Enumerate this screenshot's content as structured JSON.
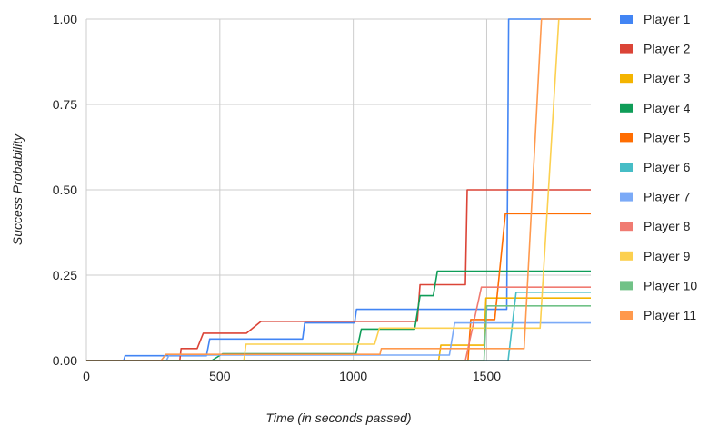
{
  "chart_data": {
    "type": "line",
    "title": "",
    "xlabel": "Time (in seconds passed)",
    "ylabel": "Success Probability",
    "xlim": [
      0,
      1890
    ],
    "ylim": [
      0,
      1
    ],
    "x_ticks": [
      0,
      500,
      1000,
      1500
    ],
    "x_tick_labels": [
      "0",
      "500",
      "1000",
      "1500"
    ],
    "y_ticks": [
      0,
      0.25,
      0.5,
      0.75,
      1
    ],
    "y_tick_labels": [
      "0.00",
      "0.25",
      "0.50",
      "0.75",
      "1.00"
    ],
    "grid": true,
    "legend_position": "right",
    "series": [
      {
        "name": "Player 1",
        "color": "#4285F4",
        "points": [
          [
            0,
            0
          ],
          [
            140,
            0
          ],
          [
            145,
            0.014
          ],
          [
            450,
            0.014
          ],
          [
            462,
            0.063
          ],
          [
            810,
            0.063
          ],
          [
            818,
            0.11
          ],
          [
            1005,
            0.11
          ],
          [
            1012,
            0.15
          ],
          [
            1575,
            0.15
          ],
          [
            1582,
            1
          ],
          [
            1890,
            1
          ]
        ]
      },
      {
        "name": "Player 2",
        "color": "#DB4437",
        "points": [
          [
            0,
            0
          ],
          [
            350,
            0
          ],
          [
            355,
            0.035
          ],
          [
            415,
            0.035
          ],
          [
            438,
            0.08
          ],
          [
            600,
            0.08
          ],
          [
            655,
            0.115
          ],
          [
            1240,
            0.115
          ],
          [
            1250,
            0.222
          ],
          [
            1420,
            0.222
          ],
          [
            1427,
            0.5
          ],
          [
            1890,
            0.5
          ]
        ]
      },
      {
        "name": "Player 3",
        "color": "#F4B400",
        "points": [
          [
            0,
            0
          ],
          [
            1320,
            0
          ],
          [
            1328,
            0.045
          ],
          [
            1490,
            0.045
          ],
          [
            1497,
            0.183
          ],
          [
            1890,
            0.183
          ]
        ]
      },
      {
        "name": "Player 4",
        "color": "#0F9D58",
        "points": [
          [
            0,
            0
          ],
          [
            470,
            0
          ],
          [
            510,
            0.02
          ],
          [
            1010,
            0.02
          ],
          [
            1030,
            0.092
          ],
          [
            1230,
            0.092
          ],
          [
            1250,
            0.19
          ],
          [
            1300,
            0.19
          ],
          [
            1315,
            0.262
          ],
          [
            1890,
            0.262
          ]
        ]
      },
      {
        "name": "Player 5",
        "color": "#FF6D01",
        "points": [
          [
            0,
            0
          ],
          [
            1430,
            0
          ],
          [
            1440,
            0.12
          ],
          [
            1530,
            0.12
          ],
          [
            1570,
            0.43
          ],
          [
            1890,
            0.43
          ]
        ]
      },
      {
        "name": "Player 6",
        "color": "#46BDC6",
        "points": [
          [
            0,
            0
          ],
          [
            1580,
            0
          ],
          [
            1610,
            0.2
          ],
          [
            1890,
            0.2
          ]
        ]
      },
      {
        "name": "Player 7",
        "color": "#7BAAF7",
        "points": [
          [
            0,
            0
          ],
          [
            300,
            0
          ],
          [
            310,
            0.016
          ],
          [
            1360,
            0.016
          ],
          [
            1380,
            0.11
          ],
          [
            1890,
            0.11
          ]
        ]
      },
      {
        "name": "Player 8",
        "color": "#F07B72",
        "points": [
          [
            0,
            0
          ],
          [
            1420,
            0
          ],
          [
            1480,
            0.215
          ],
          [
            1890,
            0.215
          ]
        ]
      },
      {
        "name": "Player 9",
        "color": "#FCD04F",
        "points": [
          [
            0,
            0
          ],
          [
            590,
            0
          ],
          [
            598,
            0.048
          ],
          [
            1080,
            0.048
          ],
          [
            1098,
            0.095
          ],
          [
            1700,
            0.095
          ],
          [
            1770,
            1
          ],
          [
            1890,
            1
          ]
        ]
      },
      {
        "name": "Player 10",
        "color": "#71C287",
        "points": [
          [
            0,
            0
          ],
          [
            1490,
            0
          ],
          [
            1500,
            0.16
          ],
          [
            1890,
            0.16
          ]
        ]
      },
      {
        "name": "Player 11",
        "color": "#FF994D",
        "points": [
          [
            0,
            0
          ],
          [
            280,
            0
          ],
          [
            298,
            0.018
          ],
          [
            1100,
            0.018
          ],
          [
            1105,
            0.035
          ],
          [
            1640,
            0.035
          ],
          [
            1705,
            1
          ],
          [
            1890,
            1
          ]
        ]
      }
    ]
  }
}
